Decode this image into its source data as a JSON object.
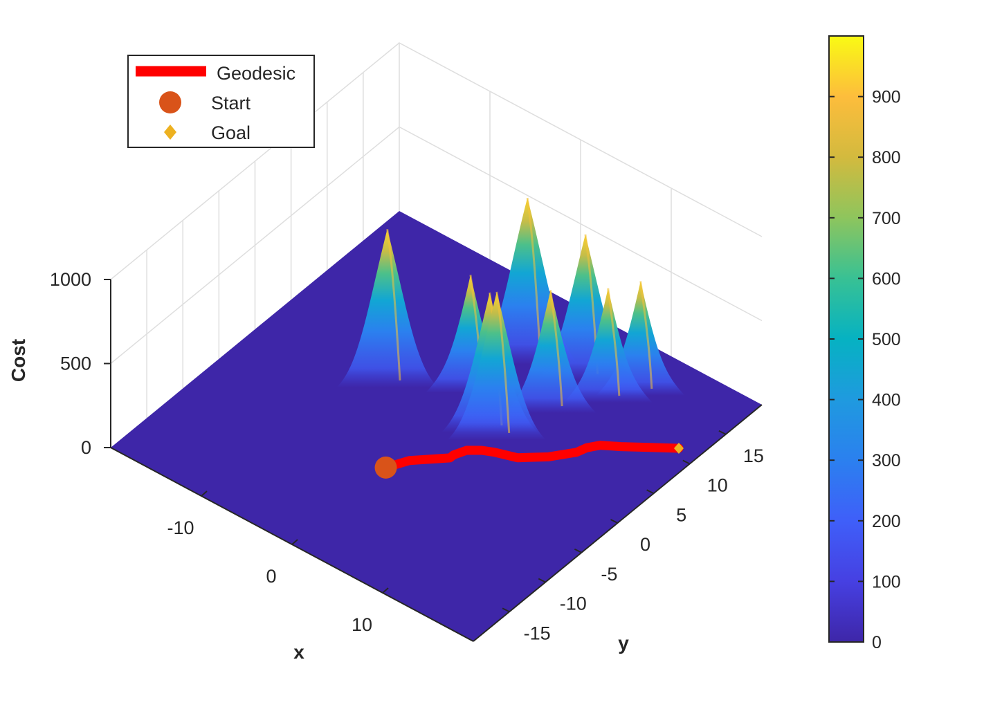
{
  "chart_data": {
    "type": "surface3d",
    "title": "",
    "xlabel": "x",
    "ylabel": "y",
    "zlabel": "Cost",
    "xlim": [
      -20,
      20
    ],
    "ylim": [
      -20,
      20
    ],
    "zlim": [
      0,
      1000
    ],
    "x_ticks": [
      -10,
      0,
      10
    ],
    "y_ticks": [
      -15,
      -10,
      -5,
      0,
      5,
      10,
      15
    ],
    "z_ticks": [
      0,
      500,
      1000
    ],
    "x_tick_labels": [
      "-10",
      "0",
      "10"
    ],
    "y_tick_labels": [
      "-15",
      "-10",
      "-5",
      "0",
      "5",
      "10",
      "15"
    ],
    "z_tick_labels": [
      "0",
      "500",
      "1000"
    ],
    "grid": true,
    "colormap": "parula",
    "colorbar": {
      "range": [
        0,
        1000
      ],
      "ticks": [
        0,
        100,
        200,
        300,
        400,
        500,
        600,
        700,
        800,
        900
      ],
      "tick_labels": [
        "0",
        "100",
        "200",
        "300",
        "400",
        "500",
        "600",
        "700",
        "800",
        "900"
      ]
    },
    "peaks": [
      {
        "x": -7,
        "y": 2,
        "height": 900
      },
      {
        "x": -1,
        "y": 6,
        "height": 660
      },
      {
        "x": 3.5,
        "y": 3,
        "height": 790
      },
      {
        "x": 4.6,
        "y": 2.6,
        "height": 840
      },
      {
        "x": 0.5,
        "y": 12,
        "height": 950
      },
      {
        "x": 6,
        "y": 8.3,
        "height": 690
      },
      {
        "x": 5.7,
        "y": 13.5,
        "height": 830
      },
      {
        "x": 9,
        "y": 12.5,
        "height": 640
      },
      {
        "x": 10.6,
        "y": 15,
        "height": 640
      }
    ],
    "series": [
      {
        "name": "Geodesic",
        "type": "line",
        "color": "#ff0000",
        "x": [
          0,
          0.5,
          1,
          2,
          3,
          3.5,
          3.5,
          4,
          5,
          6,
          8,
          10,
          11.5,
          11.8,
          12.5,
          14,
          16,
          18
        ],
        "y": [
          -7,
          -6,
          -5,
          -4,
          -3,
          -2.5,
          -2,
          -0.8,
          0,
          0.5,
          1.2,
          3,
          5,
          6,
          7,
          8,
          9.5,
          11
        ]
      },
      {
        "name": "Start",
        "type": "marker",
        "marker": "circle",
        "color": "#d95319",
        "x": [
          0
        ],
        "y": [
          -7
        ]
      },
      {
        "name": "Goal",
        "type": "marker",
        "marker": "diamond",
        "color": "#edb120",
        "x": [
          18
        ],
        "y": [
          11
        ]
      }
    ],
    "legend": {
      "placement": "top-left",
      "entries": [
        "Geodesic",
        "Start",
        "Goal"
      ]
    }
  }
}
